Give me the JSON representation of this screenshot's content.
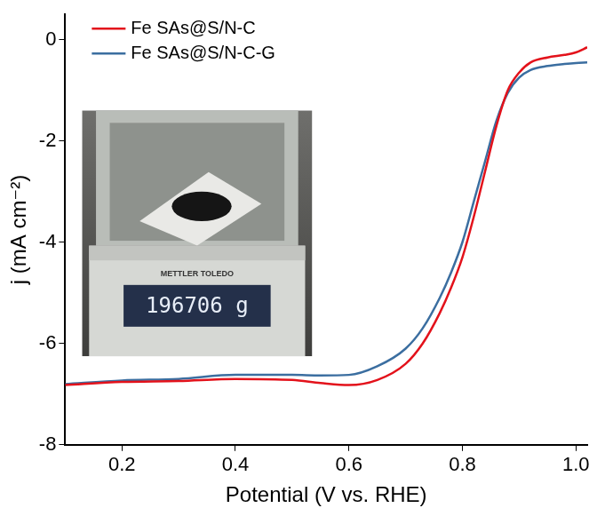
{
  "chart_data": {
    "type": "line",
    "xlabel": "Potential (V vs. RHE)",
    "ylabel": "j (mA cm⁻²)",
    "x": [
      0.1,
      0.2,
      0.3,
      0.4,
      0.5,
      0.55,
      0.6,
      0.65,
      0.7,
      0.73,
      0.76,
      0.78,
      0.8,
      0.82,
      0.84,
      0.86,
      0.88,
      0.9,
      0.92,
      0.95,
      0.98,
      1.0,
      1.02
    ],
    "series": [
      {
        "name": "Fe SAs@S/N-C",
        "color": "#e3121b",
        "values": [
          -6.82,
          -6.76,
          -6.74,
          -6.7,
          -6.72,
          -6.78,
          -6.82,
          -6.72,
          -6.4,
          -6.0,
          -5.4,
          -4.9,
          -4.3,
          -3.5,
          -2.6,
          -1.7,
          -1.0,
          -0.65,
          -0.45,
          -0.35,
          -0.3,
          -0.25,
          -0.15
        ]
      },
      {
        "name": "Fe SAs@S/N-C-G",
        "color": "#3b6ea0",
        "values": [
          -6.8,
          -6.73,
          -6.7,
          -6.62,
          -6.62,
          -6.63,
          -6.62,
          -6.45,
          -6.1,
          -5.7,
          -5.1,
          -4.6,
          -4.0,
          -3.2,
          -2.4,
          -1.6,
          -1.05,
          -0.75,
          -0.6,
          -0.52,
          -0.48,
          -0.46,
          -0.45
        ]
      }
    ],
    "xlim": [
      0.1,
      1.02
    ],
    "ylim": [
      -8,
      0.5
    ],
    "xticks": [
      0.2,
      0.4,
      0.6,
      0.8,
      {
        "value": 1,
        "label": "1.0"
      }
    ],
    "yticks": [
      0,
      -2,
      -4,
      -6,
      -8
    ],
    "grid": false,
    "legend": "upper left",
    "inset": {
      "brand": "METTLER TOLEDO",
      "display": "196706 g"
    }
  }
}
